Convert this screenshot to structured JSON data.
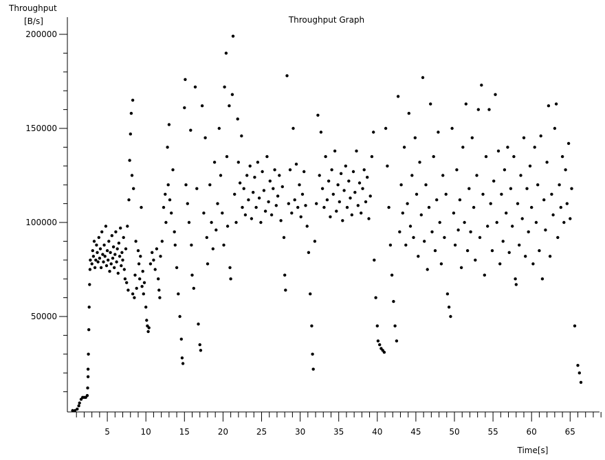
{
  "chart_data": {
    "type": "scatter",
    "title": "Throughput Graph",
    "xlabel": "Time[s]",
    "ylabel": "Throughput",
    "yunit": "[B/s]",
    "xlim": [
      0,
      69
    ],
    "ylim": [
      0,
      200000
    ],
    "x_ticks": [
      5,
      10,
      15,
      20,
      25,
      30,
      35,
      40,
      45,
      50,
      55,
      60,
      65
    ],
    "y_ticks": [
      50000,
      100000,
      150000,
      200000
    ],
    "grid": false,
    "color": "#000000",
    "points": [
      [
        0.5,
        0
      ],
      [
        0.8,
        0
      ],
      [
        1.1,
        800
      ],
      [
        1.3,
        2500
      ],
      [
        1.4,
        4000
      ],
      [
        1.6,
        6000
      ],
      [
        1.8,
        7000
      ],
      [
        2.0,
        7000
      ],
      [
        2.2,
        7000
      ],
      [
        2.4,
        8000
      ],
      [
        2.45,
        12000
      ],
      [
        2.5,
        18000
      ],
      [
        2.5,
        22000
      ],
      [
        2.55,
        30000
      ],
      [
        2.6,
        43000
      ],
      [
        2.65,
        55000
      ],
      [
        2.7,
        67000
      ],
      [
        2.75,
        75000
      ],
      [
        2.8,
        80000
      ],
      [
        3.0,
        78000
      ],
      [
        3.1,
        85000
      ],
      [
        3.2,
        82000
      ],
      [
        3.3,
        90000
      ],
      [
        3.4,
        76000
      ],
      [
        3.5,
        80000
      ],
      [
        3.6,
        88000
      ],
      [
        3.7,
        84000
      ],
      [
        3.8,
        79000
      ],
      [
        3.9,
        92000
      ],
      [
        4.0,
        81000
      ],
      [
        4.1,
        86000
      ],
      [
        4.2,
        76000
      ],
      [
        4.3,
        95000
      ],
      [
        4.4,
        83000
      ],
      [
        4.5,
        79000
      ],
      [
        4.6,
        88000
      ],
      [
        4.7,
        82000
      ],
      [
        4.8,
        98000
      ],
      [
        4.9,
        77000
      ],
      [
        5.0,
        85000
      ],
      [
        5.1,
        80000
      ],
      [
        5.2,
        90000
      ],
      [
        5.3,
        74000
      ],
      [
        5.4,
        84000
      ],
      [
        5.5,
        78000
      ],
      [
        5.6,
        93000
      ],
      [
        5.7,
        81000
      ],
      [
        5.8,
        87000
      ],
      [
        5.9,
        76000
      ],
      [
        6.0,
        83000
      ],
      [
        6.1,
        95000
      ],
      [
        6.2,
        79000
      ],
      [
        6.3,
        86000
      ],
      [
        6.4,
        73000
      ],
      [
        6.5,
        89000
      ],
      [
        6.6,
        82000
      ],
      [
        6.7,
        97000
      ],
      [
        6.8,
        77000
      ],
      [
        6.9,
        84000
      ],
      [
        7.0,
        80000
      ],
      [
        7.1,
        92000
      ],
      [
        7.2,
        75000
      ],
      [
        7.3,
        70000
      ],
      [
        7.4,
        86000
      ],
      [
        7.5,
        68000
      ],
      [
        7.6,
        98000
      ],
      [
        7.7,
        64000
      ],
      [
        7.8,
        112000
      ],
      [
        7.9,
        133000
      ],
      [
        8.0,
        147000
      ],
      [
        8.1,
        158000
      ],
      [
        8.2,
        125000
      ],
      [
        8.3,
        165000
      ],
      [
        8.3,
        62000
      ],
      [
        8.4,
        118000
      ],
      [
        8.5,
        60000
      ],
      [
        8.6,
        72000
      ],
      [
        8.7,
        90000
      ],
      [
        8.8,
        65000
      ],
      [
        9.0,
        85000
      ],
      [
        9.1,
        78000
      ],
      [
        9.2,
        70000
      ],
      [
        9.3,
        82000
      ],
      [
        9.4,
        108000
      ],
      [
        9.5,
        66000
      ],
      [
        9.6,
        74000
      ],
      [
        9.7,
        62000
      ],
      [
        9.8,
        68000
      ],
      [
        10.0,
        55000
      ],
      [
        10.1,
        48000
      ],
      [
        10.2,
        45000
      ],
      [
        10.3,
        42000
      ],
      [
        10.4,
        44000
      ],
      [
        10.6,
        78000
      ],
      [
        10.8,
        84000
      ],
      [
        11.0,
        80000
      ],
      [
        11.2,
        75000
      ],
      [
        11.4,
        86000
      ],
      [
        11.6,
        70000
      ],
      [
        11.7,
        64000
      ],
      [
        11.8,
        60000
      ],
      [
        11.9,
        82000
      ],
      [
        12.1,
        90000
      ],
      [
        12.3,
        108000
      ],
      [
        12.5,
        115000
      ],
      [
        12.6,
        100000
      ],
      [
        12.8,
        140000
      ],
      [
        12.9,
        120000
      ],
      [
        13.0,
        152000
      ],
      [
        13.1,
        112000
      ],
      [
        13.3,
        105000
      ],
      [
        13.5,
        128000
      ],
      [
        13.7,
        95000
      ],
      [
        13.8,
        88000
      ],
      [
        14.0,
        76000
      ],
      [
        14.2,
        62000
      ],
      [
        14.4,
        50000
      ],
      [
        14.6,
        38000
      ],
      [
        14.7,
        28000
      ],
      [
        14.8,
        25000
      ],
      [
        15.0,
        161000
      ],
      [
        15.1,
        176000
      ],
      [
        15.2,
        120000
      ],
      [
        15.4,
        110000
      ],
      [
        15.6,
        100000
      ],
      [
        15.8,
        149000
      ],
      [
        15.9,
        88000
      ],
      [
        16.0,
        72000
      ],
      [
        16.2,
        65000
      ],
      [
        16.4,
        172000
      ],
      [
        16.6,
        118000
      ],
      [
        16.8,
        46000
      ],
      [
        17.0,
        35000
      ],
      [
        17.1,
        32000
      ],
      [
        17.3,
        162000
      ],
      [
        17.5,
        105000
      ],
      [
        17.7,
        145000
      ],
      [
        17.9,
        92000
      ],
      [
        18.0,
        78000
      ],
      [
        18.3,
        120000
      ],
      [
        18.5,
        100000
      ],
      [
        18.7,
        86000
      ],
      [
        18.9,
        132000
      ],
      [
        19.1,
        96000
      ],
      [
        19.3,
        110000
      ],
      [
        19.5,
        150000
      ],
      [
        19.7,
        125000
      ],
      [
        19.9,
        105000
      ],
      [
        20.1,
        88000
      ],
      [
        20.2,
        172000
      ],
      [
        20.4,
        190000
      ],
      [
        20.5,
        135000
      ],
      [
        20.6,
        98000
      ],
      [
        20.8,
        162000
      ],
      [
        20.9,
        76000
      ],
      [
        21.0,
        70000
      ],
      [
        21.2,
        168000
      ],
      [
        21.3,
        199000
      ],
      [
        21.5,
        115000
      ],
      [
        21.7,
        100000
      ],
      [
        21.9,
        155000
      ],
      [
        22.0,
        132000
      ],
      [
        22.2,
        121000
      ],
      [
        22.4,
        146000
      ],
      [
        22.5,
        108000
      ],
      [
        22.7,
        118000
      ],
      [
        22.9,
        104000
      ],
      [
        23.1,
        125000
      ],
      [
        23.3,
        112000
      ],
      [
        23.5,
        130000
      ],
      [
        23.7,
        102000
      ],
      [
        23.9,
        116000
      ],
      [
        24.1,
        124000
      ],
      [
        24.3,
        108000
      ],
      [
        24.5,
        132000
      ],
      [
        24.7,
        113000
      ],
      [
        24.9,
        100000
      ],
      [
        25.1,
        127000
      ],
      [
        25.3,
        117000
      ],
      [
        25.5,
        106000
      ],
      [
        25.7,
        135000
      ],
      [
        25.9,
        111000
      ],
      [
        26.1,
        122000
      ],
      [
        26.3,
        104000
      ],
      [
        26.5,
        118000
      ],
      [
        26.7,
        128000
      ],
      [
        26.9,
        109000
      ],
      [
        27.1,
        114000
      ],
      [
        27.3,
        125000
      ],
      [
        27.5,
        101000
      ],
      [
        27.7,
        119000
      ],
      [
        27.9,
        92000
      ],
      [
        28.0,
        72000
      ],
      [
        28.1,
        64000
      ],
      [
        28.3,
        178000
      ],
      [
        28.5,
        110000
      ],
      [
        28.7,
        128000
      ],
      [
        28.9,
        105000
      ],
      [
        29.1,
        150000
      ],
      [
        29.3,
        112000
      ],
      [
        29.5,
        131000
      ],
      [
        29.7,
        108000
      ],
      [
        29.9,
        120000
      ],
      [
        30.1,
        103000
      ],
      [
        30.3,
        115000
      ],
      [
        30.5,
        127000
      ],
      [
        30.7,
        109000
      ],
      [
        30.9,
        98000
      ],
      [
        31.1,
        84000
      ],
      [
        31.3,
        62000
      ],
      [
        31.5,
        45000
      ],
      [
        31.6,
        30000
      ],
      [
        31.7,
        22000
      ],
      [
        31.9,
        90000
      ],
      [
        32.1,
        110000
      ],
      [
        32.3,
        157000
      ],
      [
        32.5,
        125000
      ],
      [
        32.7,
        148000
      ],
      [
        32.9,
        118000
      ],
      [
        33.1,
        108000
      ],
      [
        33.3,
        135000
      ],
      [
        33.5,
        112000
      ],
      [
        33.7,
        122000
      ],
      [
        33.9,
        103000
      ],
      [
        34.1,
        128000
      ],
      [
        34.3,
        115000
      ],
      [
        34.5,
        138000
      ],
      [
        34.7,
        106000
      ],
      [
        34.9,
        120000
      ],
      [
        35.1,
        111000
      ],
      [
        35.3,
        126000
      ],
      [
        35.5,
        101000
      ],
      [
        35.7,
        117000
      ],
      [
        35.9,
        130000
      ],
      [
        36.1,
        108000
      ],
      [
        36.3,
        122000
      ],
      [
        36.5,
        113000
      ],
      [
        36.7,
        104000
      ],
      [
        36.9,
        127000
      ],
      [
        37.1,
        116000
      ],
      [
        37.3,
        138000
      ],
      [
        37.5,
        109000
      ],
      [
        37.7,
        121000
      ],
      [
        37.9,
        105000
      ],
      [
        38.1,
        118000
      ],
      [
        38.3,
        128000
      ],
      [
        38.5,
        111000
      ],
      [
        38.7,
        124000
      ],
      [
        38.9,
        102000
      ],
      [
        39.1,
        114000
      ],
      [
        39.3,
        135000
      ],
      [
        39.5,
        148000
      ],
      [
        39.6,
        80000
      ],
      [
        39.8,
        60000
      ],
      [
        40.0,
        45000
      ],
      [
        40.1,
        37000
      ],
      [
        40.3,
        35000
      ],
      [
        40.5,
        33000
      ],
      [
        40.7,
        32000
      ],
      [
        40.9,
        31000
      ],
      [
        41.1,
        150000
      ],
      [
        41.3,
        130000
      ],
      [
        41.5,
        108000
      ],
      [
        41.7,
        88000
      ],
      [
        41.9,
        72000
      ],
      [
        42.1,
        58000
      ],
      [
        42.3,
        45000
      ],
      [
        42.5,
        37000
      ],
      [
        42.7,
        167000
      ],
      [
        42.9,
        95000
      ],
      [
        43.1,
        120000
      ],
      [
        43.3,
        105000
      ],
      [
        43.5,
        140000
      ],
      [
        43.7,
        88000
      ],
      [
        43.9,
        110000
      ],
      [
        44.1,
        158000
      ],
      [
        44.3,
        98000
      ],
      [
        44.5,
        125000
      ],
      [
        44.7,
        92000
      ],
      [
        44.9,
        145000
      ],
      [
        45.1,
        115000
      ],
      [
        45.3,
        82000
      ],
      [
        45.5,
        132000
      ],
      [
        45.7,
        104000
      ],
      [
        45.9,
        177000
      ],
      [
        46.1,
        90000
      ],
      [
        46.3,
        120000
      ],
      [
        46.5,
        75000
      ],
      [
        46.7,
        108000
      ],
      [
        46.9,
        163000
      ],
      [
        47.1,
        95000
      ],
      [
        47.3,
        135000
      ],
      [
        47.5,
        85000
      ],
      [
        47.7,
        112000
      ],
      [
        47.9,
        148000
      ],
      [
        48.1,
        100000
      ],
      [
        48.3,
        78000
      ],
      [
        48.5,
        125000
      ],
      [
        48.7,
        92000
      ],
      [
        48.9,
        115000
      ],
      [
        49.1,
        62000
      ],
      [
        49.3,
        55000
      ],
      [
        49.5,
        50000
      ],
      [
        49.7,
        150000
      ],
      [
        49.9,
        105000
      ],
      [
        50.1,
        88000
      ],
      [
        50.3,
        128000
      ],
      [
        50.5,
        96000
      ],
      [
        50.7,
        112000
      ],
      [
        50.9,
        76000
      ],
      [
        51.1,
        140000
      ],
      [
        51.3,
        100000
      ],
      [
        51.5,
        163000
      ],
      [
        51.7,
        85000
      ],
      [
        51.9,
        118000
      ],
      [
        52.1,
        95000
      ],
      [
        52.3,
        145000
      ],
      [
        52.5,
        108000
      ],
      [
        52.7,
        80000
      ],
      [
        52.9,
        125000
      ],
      [
        53.1,
        160000
      ],
      [
        53.3,
        92000
      ],
      [
        53.5,
        173000
      ],
      [
        53.7,
        115000
      ],
      [
        53.9,
        72000
      ],
      [
        54.1,
        135000
      ],
      [
        54.3,
        98000
      ],
      [
        54.5,
        160000
      ],
      [
        54.7,
        110000
      ],
      [
        54.9,
        85000
      ],
      [
        55.1,
        122000
      ],
      [
        55.3,
        168000
      ],
      [
        55.5,
        100000
      ],
      [
        55.7,
        138000
      ],
      [
        55.9,
        78000
      ],
      [
        56.1,
        115000
      ],
      [
        56.3,
        90000
      ],
      [
        56.5,
        128000
      ],
      [
        56.7,
        105000
      ],
      [
        56.9,
        140000
      ],
      [
        57.1,
        84000
      ],
      [
        57.3,
        118000
      ],
      [
        57.5,
        98000
      ],
      [
        57.7,
        135000
      ],
      [
        57.9,
        70000
      ],
      [
        58.0,
        67000
      ],
      [
        58.2,
        110000
      ],
      [
        58.4,
        88000
      ],
      [
        58.6,
        125000
      ],
      [
        58.8,
        102000
      ],
      [
        59.0,
        145000
      ],
      [
        59.2,
        82000
      ],
      [
        59.4,
        118000
      ],
      [
        59.6,
        95000
      ],
      [
        59.8,
        130000
      ],
      [
        60.0,
        108000
      ],
      [
        60.2,
        78000
      ],
      [
        60.4,
        140000
      ],
      [
        60.6,
        100000
      ],
      [
        60.8,
        120000
      ],
      [
        61.0,
        85000
      ],
      [
        61.2,
        146000
      ],
      [
        61.4,
        70000
      ],
      [
        61.6,
        112000
      ],
      [
        61.8,
        96000
      ],
      [
        62.0,
        132000
      ],
      [
        62.2,
        162000
      ],
      [
        62.4,
        82000
      ],
      [
        62.6,
        115000
      ],
      [
        62.8,
        104000
      ],
      [
        63.0,
        150000
      ],
      [
        63.2,
        163000
      ],
      [
        63.4,
        92000
      ],
      [
        63.6,
        120000
      ],
      [
        63.8,
        108000
      ],
      [
        64.0,
        135000
      ],
      [
        64.2,
        100000
      ],
      [
        64.4,
        128000
      ],
      [
        64.6,
        110000
      ],
      [
        64.8,
        142000
      ],
      [
        65.0,
        102000
      ],
      [
        65.2,
        118000
      ],
      [
        65.6,
        45000
      ],
      [
        66.0,
        24000
      ],
      [
        66.2,
        20000
      ],
      [
        66.4,
        15000
      ]
    ]
  }
}
